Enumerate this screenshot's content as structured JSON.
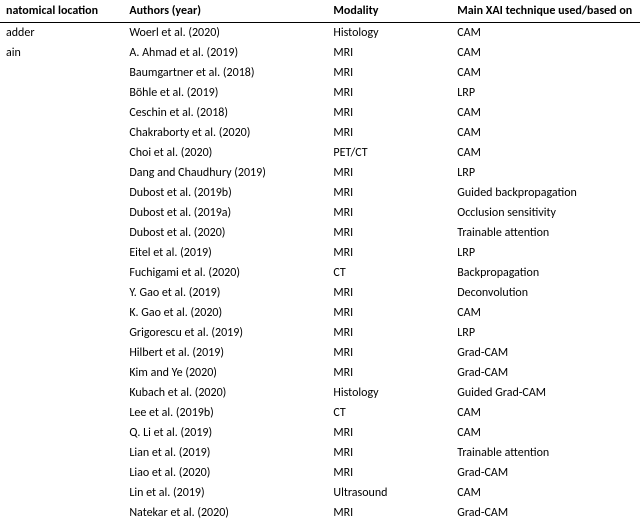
{
  "columns": {
    "anatomical_location": "natomical location",
    "authors": "Authors (year)",
    "modality": "Modality",
    "xai": "Main XAI technique used/based on"
  },
  "rows": [
    {
      "loc": "adder",
      "auth": "Woerl et al. (2020)",
      "mod": "Histology",
      "xai": "CAM"
    },
    {
      "loc": "ain",
      "auth": "A. Ahmad et al. (2019)",
      "mod": "MRI",
      "xai": "CAM"
    },
    {
      "loc": "",
      "auth": "Baumgartner et al. (2018)",
      "mod": "MRI",
      "xai": "CAM"
    },
    {
      "loc": "",
      "auth": "Böhle et al. (2019)",
      "mod": "MRI",
      "xai": "LRP"
    },
    {
      "loc": "",
      "auth": "Ceschin et al. (2018)",
      "mod": "MRI",
      "xai": "CAM"
    },
    {
      "loc": "",
      "auth": "Chakraborty et al. (2020)",
      "mod": "MRI",
      "xai": "CAM"
    },
    {
      "loc": "",
      "auth": "Choi et al. (2020)",
      "mod": "PET/CT",
      "xai": "CAM"
    },
    {
      "loc": "",
      "auth": "Dang and Chaudhury (2019)",
      "mod": "MRI",
      "xai": "LRP"
    },
    {
      "loc": "",
      "auth": "Dubost et al. (2019b)",
      "mod": "MRI",
      "xai": "Guided backpropagation"
    },
    {
      "loc": "",
      "auth": "Dubost et al. (2019a)",
      "mod": "MRI",
      "xai": "Occlusion sensitivity"
    },
    {
      "loc": "",
      "auth": "Dubost et al. (2020)",
      "mod": "MRI",
      "xai": "Trainable attention"
    },
    {
      "loc": "",
      "auth": "Eitel et al. (2019)",
      "mod": "MRI",
      "xai": "LRP"
    },
    {
      "loc": "",
      "auth": "Fuchigami et al. (2020)",
      "mod": "CT",
      "xai": "Backpropagation"
    },
    {
      "loc": "",
      "auth": "Y. Gao et al. (2019)",
      "mod": "MRI",
      "xai": "Deconvolution"
    },
    {
      "loc": "",
      "auth": "K. Gao et al. (2020)",
      "mod": "MRI",
      "xai": "CAM"
    },
    {
      "loc": "",
      "auth": "Grigorescu et al. (2019)",
      "mod": "MRI",
      "xai": "LRP"
    },
    {
      "loc": "",
      "auth": "Hilbert et al. (2019)",
      "mod": "MRI",
      "xai": "Grad-CAM"
    },
    {
      "loc": "",
      "auth": "Kim and Ye (2020)",
      "mod": "MRI",
      "xai": "Grad-CAM"
    },
    {
      "loc": "",
      "auth": "Kubach et al. (2020)",
      "mod": "Histology",
      "xai": "Guided Grad-CAM"
    },
    {
      "loc": "",
      "auth": "Lee et al. (2019b)",
      "mod": "CT",
      "xai": "CAM"
    },
    {
      "loc": "",
      "auth": "Q. Li et al. (2019)",
      "mod": "MRI",
      "xai": "CAM"
    },
    {
      "loc": "",
      "auth": "Lian et al. (2019)",
      "mod": "MRI",
      "xai": "Trainable attention"
    },
    {
      "loc": "",
      "auth": "Liao et al. (2020)",
      "mod": "MRI",
      "xai": "Grad-CAM"
    },
    {
      "loc": "",
      "auth": "Lin et al. (2019)",
      "mod": "Ultrasound",
      "xai": "CAM"
    },
    {
      "loc": "",
      "auth": "Natekar et al. (2020)",
      "mod": "MRI",
      "xai": "Grad-CAM"
    }
  ]
}
